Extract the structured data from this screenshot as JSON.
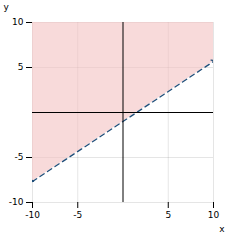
{
  "chart_data": {
    "type": "line",
    "x": [
      -10,
      10
    ],
    "series": [
      {
        "type": "area",
        "color": "#f4c2c2",
        "values": [
          -7.667,
          5.667
        ]
      },
      {
        "type": "line",
        "color": "#1f4e79",
        "values": [
          -7.667,
          5.667
        ],
        "line_style": "dashed",
        "marker": "arrow"
      }
    ],
    "xlabel": "x",
    "ylabel": "y",
    "xlim": [
      -10,
      10
    ],
    "ylim": [
      -10,
      10
    ],
    "xticks": [
      -10,
      -5,
      5,
      10
    ],
    "yticks": [
      -10,
      -5,
      5,
      10
    ],
    "grid": true
  }
}
